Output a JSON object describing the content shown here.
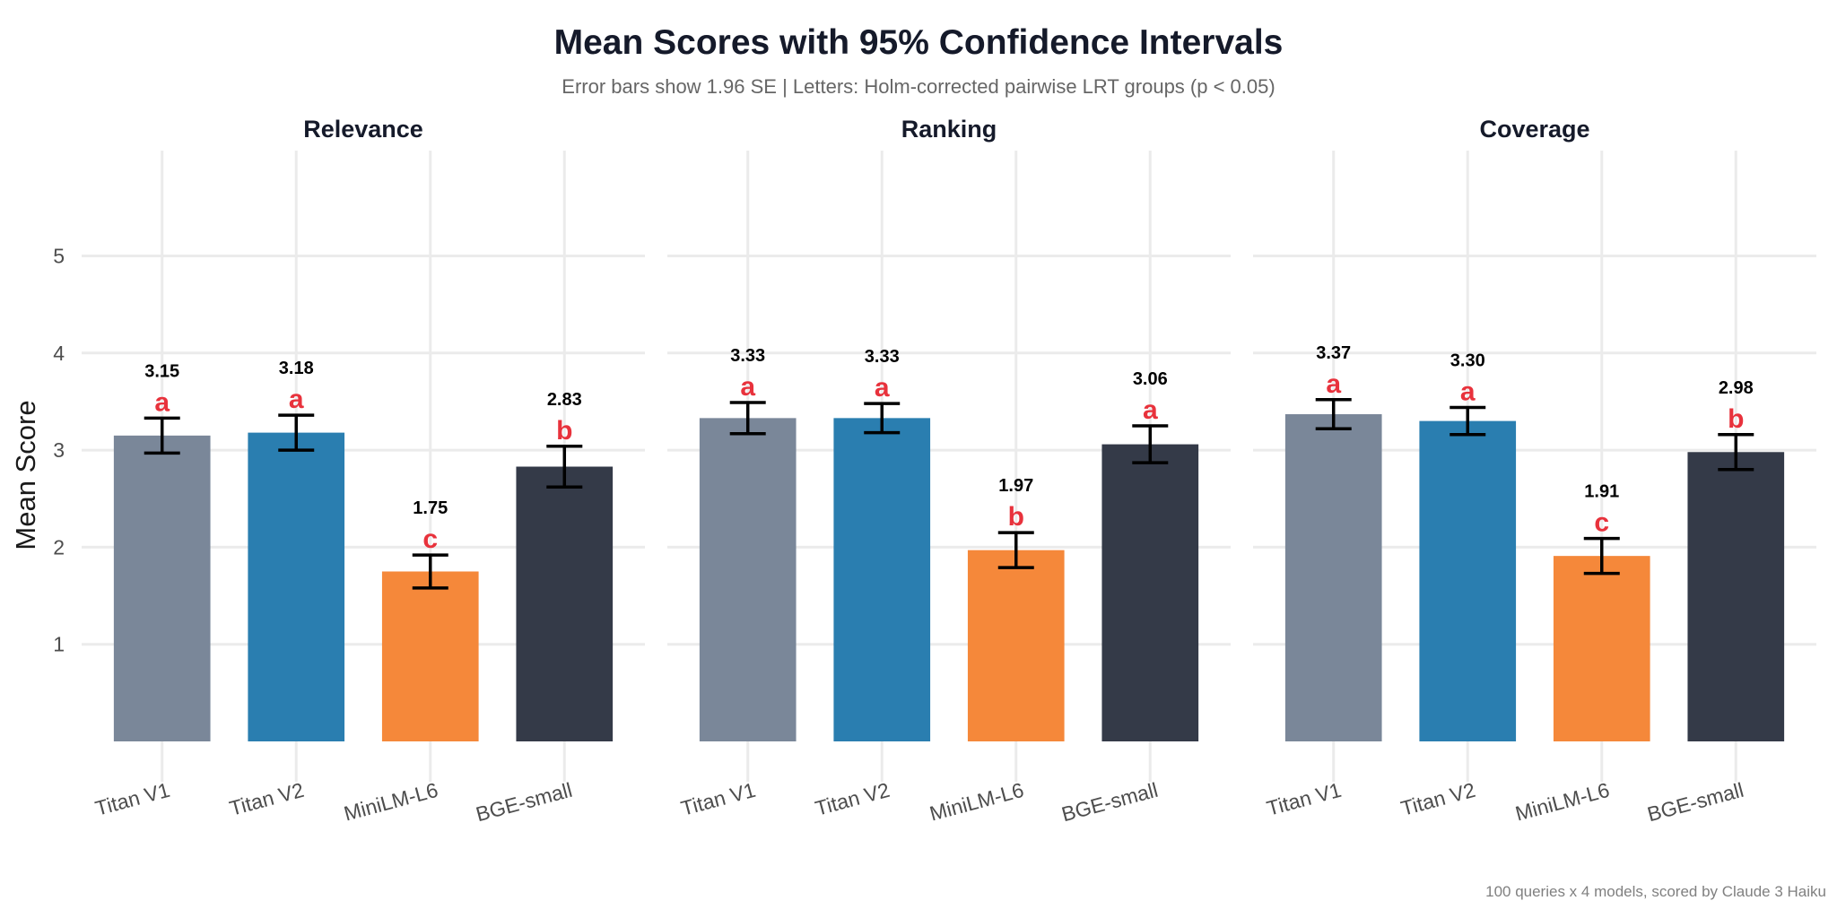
{
  "chart_data": {
    "type": "bar",
    "title": "Mean Scores with 95% Confidence Intervals",
    "subtitle": "Error bars show 1.96 SE | Letters: Holm-corrected pairwise LRT groups (p < 0.05)",
    "caption": "100 queries x 4 models, scored by Claude 3 Haiku",
    "ylabel": "Mean Score",
    "xlabel": "",
    "ylim": [
      0,
      6
    ],
    "yticks": [
      1,
      2,
      3,
      4,
      5
    ],
    "grid": true,
    "categories": [
      "Titan V1",
      "Titan V2",
      "MiniLM-L6",
      "BGE-small"
    ],
    "colors": [
      "#7a8799",
      "#2a7eb0",
      "#f5883a",
      "#343a48"
    ],
    "letter_color": "#e8323c",
    "panels": [
      {
        "name": "Relevance",
        "values": [
          3.15,
          3.18,
          1.75,
          2.83
        ],
        "labels": [
          "3.15",
          "3.18",
          "1.75",
          "2.83"
        ],
        "ci_low": [
          2.97,
          3.0,
          1.58,
          2.62
        ],
        "ci_high": [
          3.33,
          3.36,
          1.92,
          3.04
        ],
        "letters": [
          "a",
          "a",
          "c",
          "b"
        ]
      },
      {
        "name": "Ranking",
        "values": [
          3.33,
          3.33,
          1.97,
          3.06
        ],
        "labels": [
          "3.33",
          "3.33",
          "1.97",
          "3.06"
        ],
        "ci_low": [
          3.17,
          3.18,
          1.79,
          2.87
        ],
        "ci_high": [
          3.49,
          3.48,
          2.15,
          3.25
        ],
        "letters": [
          "a",
          "a",
          "b",
          "a"
        ]
      },
      {
        "name": "Coverage",
        "values": [
          3.37,
          3.3,
          1.91,
          2.98
        ],
        "labels": [
          "3.37",
          "3.30",
          "1.91",
          "2.98"
        ],
        "ci_low": [
          3.22,
          3.16,
          1.73,
          2.8
        ],
        "ci_high": [
          3.52,
          3.44,
          2.09,
          3.16
        ],
        "letters": [
          "a",
          "a",
          "c",
          "b"
        ]
      }
    ]
  }
}
